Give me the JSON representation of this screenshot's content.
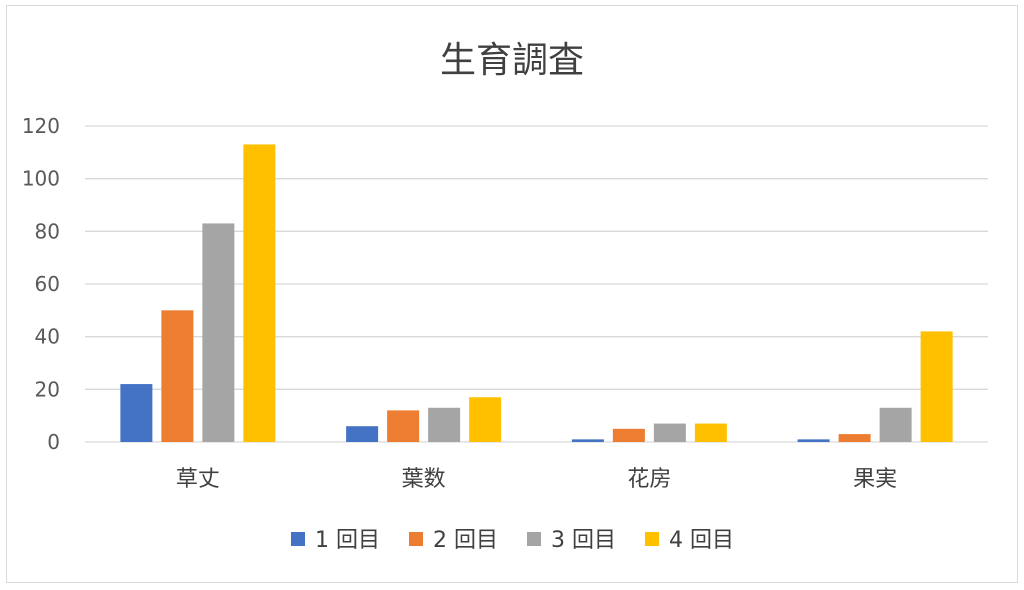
{
  "chart_data": {
    "type": "bar",
    "title": "生育調査",
    "categories": [
      "草丈",
      "葉数",
      "花房",
      "果実"
    ],
    "series": [
      {
        "name": "1 回目",
        "color": "#4472c4",
        "values": [
          22,
          6,
          1,
          1
        ]
      },
      {
        "name": "2 回目",
        "color": "#ed7d31",
        "values": [
          50,
          12,
          5,
          3
        ]
      },
      {
        "name": "3 回目",
        "color": "#a5a5a5",
        "values": [
          83,
          13,
          7,
          13
        ]
      },
      {
        "name": "4 回目",
        "color": "#ffc000",
        "values": [
          113,
          17,
          7,
          42
        ]
      }
    ],
    "ylim": [
      0,
      120
    ],
    "yticks": [
      0,
      20,
      40,
      60,
      80,
      100,
      120
    ],
    "grid": true,
    "legend": "bottom"
  }
}
